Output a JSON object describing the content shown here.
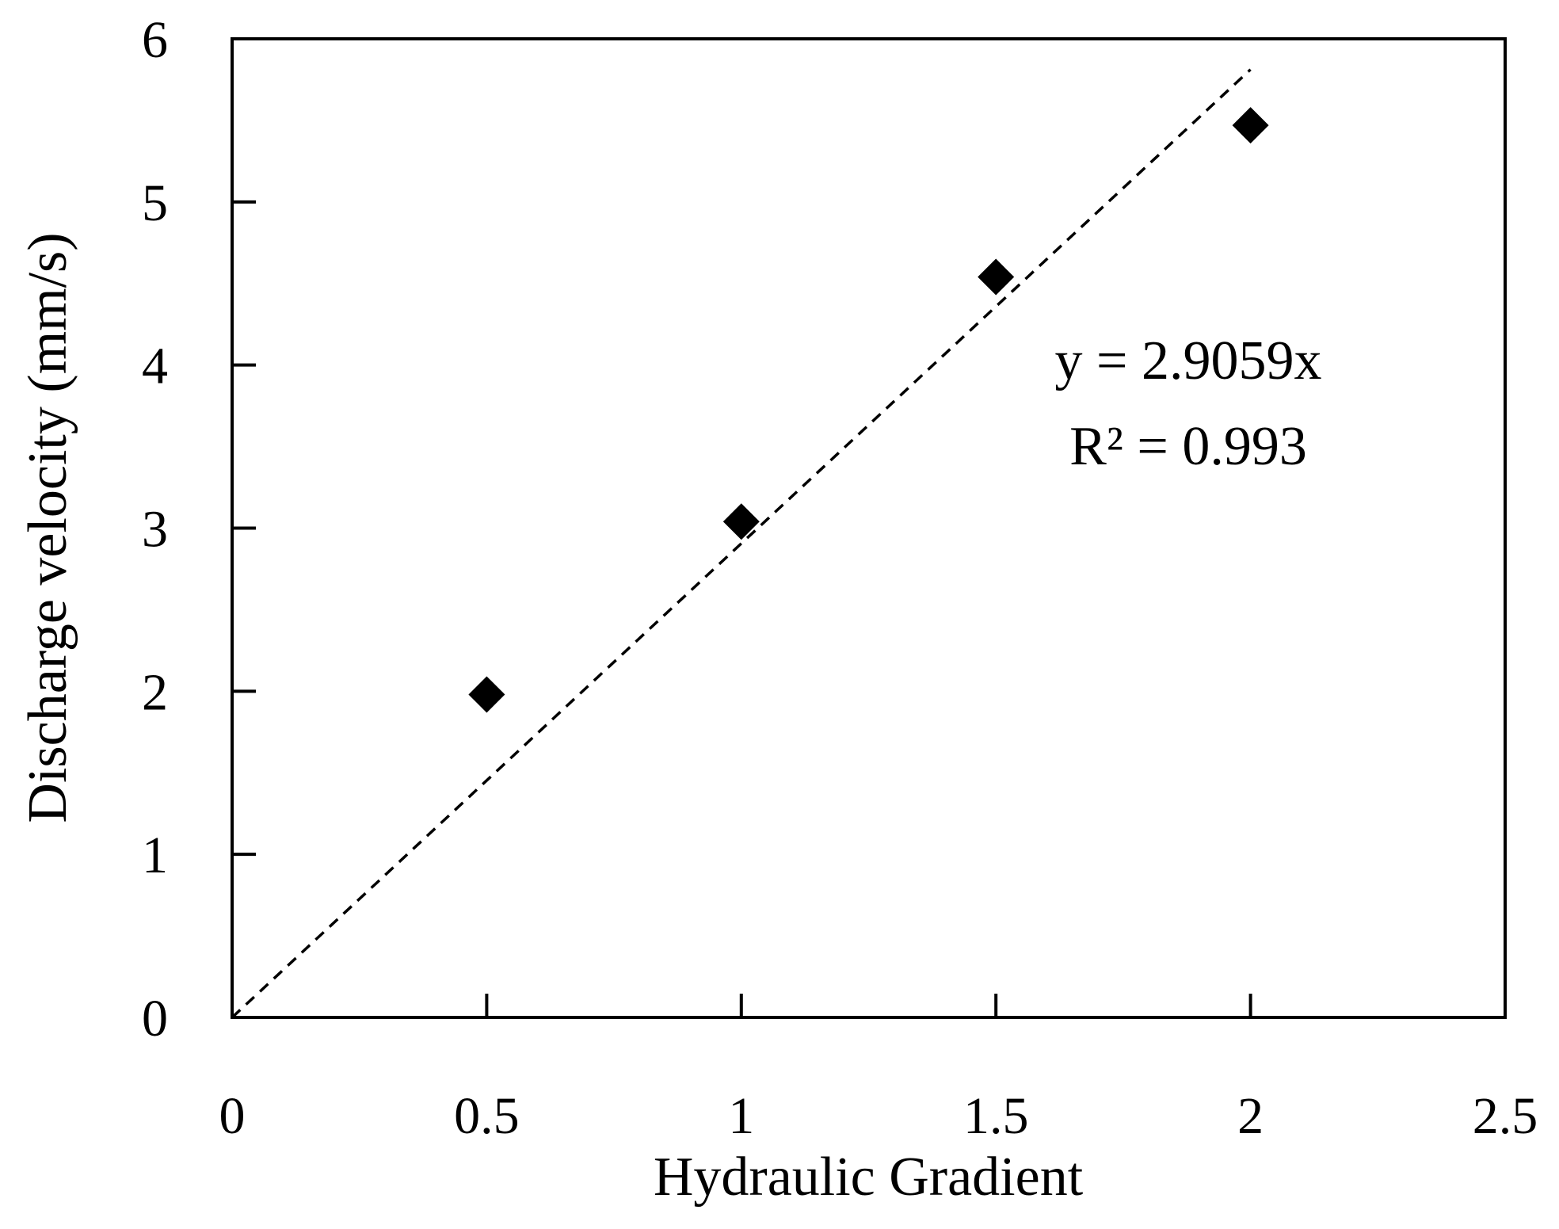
{
  "chart_data": {
    "type": "scatter",
    "title": "",
    "xlabel": "Hydraulic Gradient",
    "ylabel": "Discharge velocity (mm/s)",
    "xlim": [
      0,
      2.5
    ],
    "ylim": [
      0,
      6
    ],
    "x_ticks": [
      0,
      0.5,
      1,
      1.5,
      2,
      2.5
    ],
    "x_tick_labels": [
      "0",
      "0.5",
      "1",
      "1.5",
      "2",
      "2.5"
    ],
    "y_ticks": [
      0,
      1,
      2,
      3,
      4,
      5,
      6
    ],
    "y_tick_labels": [
      "0",
      "1",
      "2",
      "3",
      "4",
      "5",
      "6"
    ],
    "grid": false,
    "legend": "none",
    "marker": "diamond",
    "series": [
      {
        "x": [
          0.5,
          1,
          1.5,
          2
        ],
        "y": [
          1.98,
          3.04,
          4.54,
          5.47
        ]
      }
    ],
    "trendline": {
      "style": "dashed",
      "slope": 2.9059,
      "intercept": 0,
      "x_range": [
        0,
        2
      ]
    },
    "annotations": [
      "y = 2.9059x",
      "R² = 0.993"
    ],
    "colors": {
      "marker": "#000000",
      "line": "#000000",
      "axis": "#000000"
    }
  }
}
